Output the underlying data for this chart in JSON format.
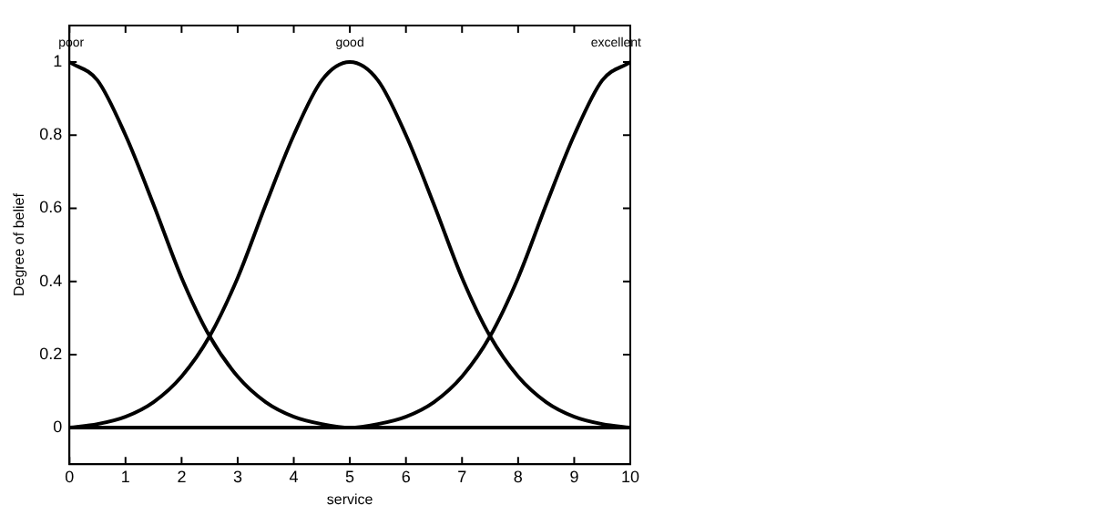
{
  "chart_data": {
    "type": "line",
    "xlabel": "service",
    "ylabel": "Degree of belief",
    "x": [
      0,
      0.5,
      1,
      1.5,
      2,
      2.5,
      3,
      3.5,
      4,
      4.5,
      5,
      5.5,
      6,
      6.5,
      7,
      7.5,
      8,
      8.5,
      9,
      9.5,
      10
    ],
    "series": [
      {
        "color": "#000000",
        "values": [
          1,
          0.95,
          0.8,
          0.61,
          0.41,
          0.25,
          0.14,
          0.07,
          0.03,
          0.01,
          0,
          0,
          0,
          0,
          0,
          0,
          0,
          0,
          0,
          0,
          0
        ]
      },
      {
        "color": "#000000",
        "values": [
          0,
          0.01,
          0.03,
          0.07,
          0.14,
          0.25,
          0.41,
          0.61,
          0.8,
          0.95,
          1,
          0.95,
          0.8,
          0.61,
          0.41,
          0.25,
          0.14,
          0.07,
          0.03,
          0.01,
          0
        ]
      },
      {
        "color": "#000000",
        "values": [
          0,
          0,
          0,
          0,
          0,
          0,
          0,
          0,
          0,
          0,
          0,
          0.01,
          0.03,
          0.07,
          0.14,
          0.25,
          0.41,
          0.61,
          0.8,
          0.95,
          1
        ]
      }
    ],
    "xlim": [
      0,
      10
    ],
    "xticks": [
      0,
      1,
      2,
      3,
      4,
      5,
      6,
      7,
      8,
      9,
      10
    ],
    "ylim": [
      -0.1,
      1.1
    ],
    "yticks": [
      0,
      0.2,
      0.4,
      0.6,
      0.8,
      1
    ],
    "annotations": [
      {
        "text": "poor",
        "x": 0,
        "y": 1
      },
      {
        "text": "good",
        "x": 5,
        "y": 1
      },
      {
        "text": "excellent",
        "x": 10,
        "y": 1
      }
    ],
    "grid": false,
    "legend": false,
    "marker": "none",
    "line_style": "solid"
  }
}
